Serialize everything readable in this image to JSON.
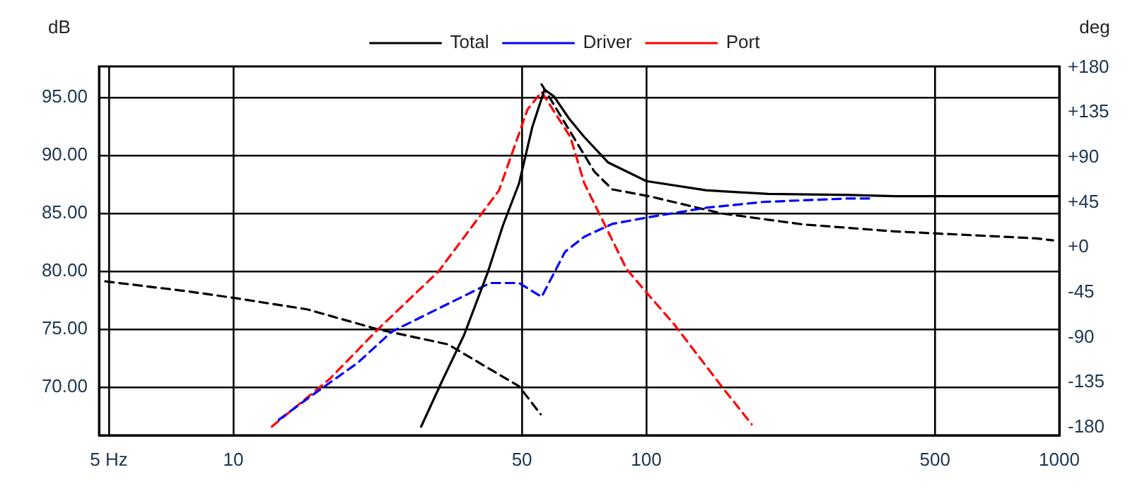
{
  "chart_data": {
    "type": "line",
    "ylabel": "dB",
    "y2label": "deg",
    "log": "x",
    "grid": true,
    "legend": "top",
    "marker": "none",
    "xlim": [
      4.73,
      1000
    ],
    "xticks": [
      {
        "value": 5,
        "label": "5 Hz"
      },
      10,
      50,
      100,
      500,
      1000
    ],
    "ylim": [
      65.85,
      97.7
    ],
    "yticks": [
      {
        "value": 70,
        "label": "70.00"
      },
      {
        "value": 75,
        "label": "75.00"
      },
      {
        "value": 80,
        "label": "80.00"
      },
      {
        "value": 85,
        "label": "85.00"
      },
      {
        "value": 90,
        "label": "90.00"
      },
      {
        "value": 95,
        "label": "95.00"
      }
    ],
    "y2lim": [
      -188,
      181
    ],
    "y2ticks": [
      {
        "value": -180,
        "label": "-180"
      },
      {
        "value": -135,
        "label": "-135"
      },
      {
        "value": -90,
        "label": "-90"
      },
      {
        "value": -45,
        "label": "-45"
      },
      {
        "value": 0,
        "label": "+0"
      },
      {
        "value": 45,
        "label": "+45"
      },
      {
        "value": 90,
        "label": "+90"
      },
      {
        "value": 135,
        "label": "+135"
      },
      {
        "value": 180,
        "label": "+180"
      }
    ],
    "series": [
      {
        "name": "Total",
        "color": "#000000",
        "line_style": "solid",
        "x": [
          28.5,
          32,
          36.2,
          41.4,
          45,
          49.2,
          53,
          56.7,
          59.8,
          65,
          70.8,
          80.9,
          100,
          140,
          197,
          309,
          400,
          600,
          1000
        ],
        "values": [
          66.6,
          70.5,
          74.5,
          80,
          84,
          87.6,
          92.5,
          95.7,
          95.1,
          93.2,
          91.6,
          89.4,
          87.8,
          87,
          86.7,
          86.6,
          86.5,
          86.5,
          86.5
        ]
      },
      {
        "name": "Driver",
        "color": "#0000ff",
        "line_style": "dashed",
        "x": [
          12.9,
          15.1,
          20,
          24.2,
          33.1,
          41.9,
          49.2,
          55.8,
          63.6,
          70.8,
          82.7,
          102,
          140,
          192,
          309,
          352
        ],
        "values": [
          67.2,
          69,
          72.1,
          74.8,
          77.2,
          79,
          79,
          77.8,
          81.7,
          83,
          84.1,
          84.7,
          85.5,
          86,
          86.3,
          86.3
        ]
      },
      {
        "name": "Port",
        "color": "#ff0000",
        "line_style": "dashed",
        "x": [
          12.4,
          17.1,
          22.4,
          31.4,
          44,
          51.6,
          55.8,
          65.5,
          70.8,
          89.6,
          100,
          117,
          152,
          180
        ],
        "values": [
          66.6,
          70.7,
          75,
          80,
          87,
          94,
          95.5,
          91.6,
          87.6,
          80.2,
          78.2,
          75.4,
          70.1,
          66.8
        ]
      },
      {
        "color": "#000000",
        "line_style": "dashed",
        "axis": "y2",
        "x": [
          4.9,
          7.77,
          10.2,
          15.1,
          22.4,
          33.1,
          49.2,
          55.5,
          55.7,
          55.8,
          74.8,
          82.7,
          102,
          152,
          239,
          398,
          880,
          966
        ],
        "values": [
          -34,
          -44,
          -51,
          -62,
          -82,
          -97,
          -139,
          -167,
          null,
          163,
          76,
          58,
          51,
          34,
          23,
          16,
          9,
          7
        ]
      }
    ]
  }
}
